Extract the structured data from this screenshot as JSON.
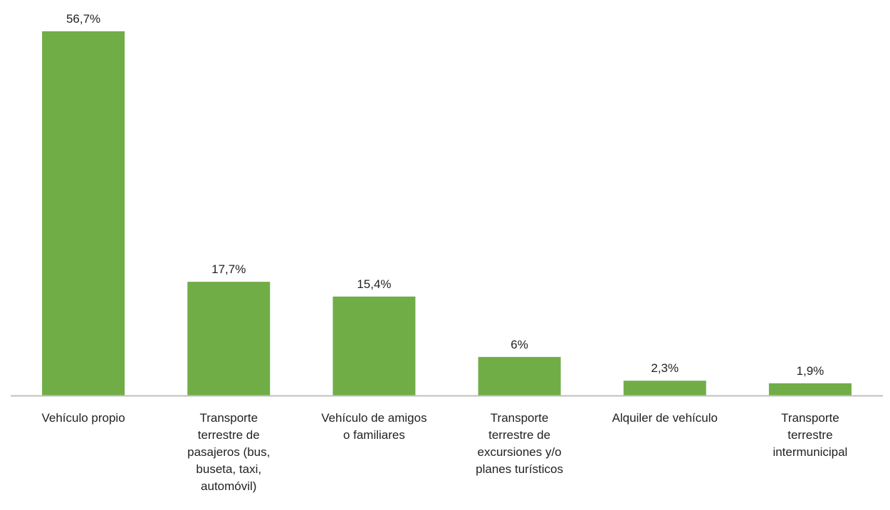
{
  "chart_data": {
    "type": "bar",
    "categories": [
      "Vehículo propio",
      "Transporte\nterrestre de\npasajeros (bus,\nbuseta, taxi,\nautomóvil)",
      "Vehículo de amigos\no familiares",
      "Transporte\nterrestre de\nexcursiones y/o\nplanes turísticos",
      "Alquiler de vehículo",
      "Transporte\nterrestre\nintermunicipal"
    ],
    "values": [
      56.7,
      17.7,
      15.4,
      6,
      2.3,
      1.9
    ],
    "value_labels": [
      "56,7%",
      "17,7%",
      "15,4%",
      "6%",
      "2,3%",
      "1,9%"
    ],
    "color": "#70ad47"
  }
}
